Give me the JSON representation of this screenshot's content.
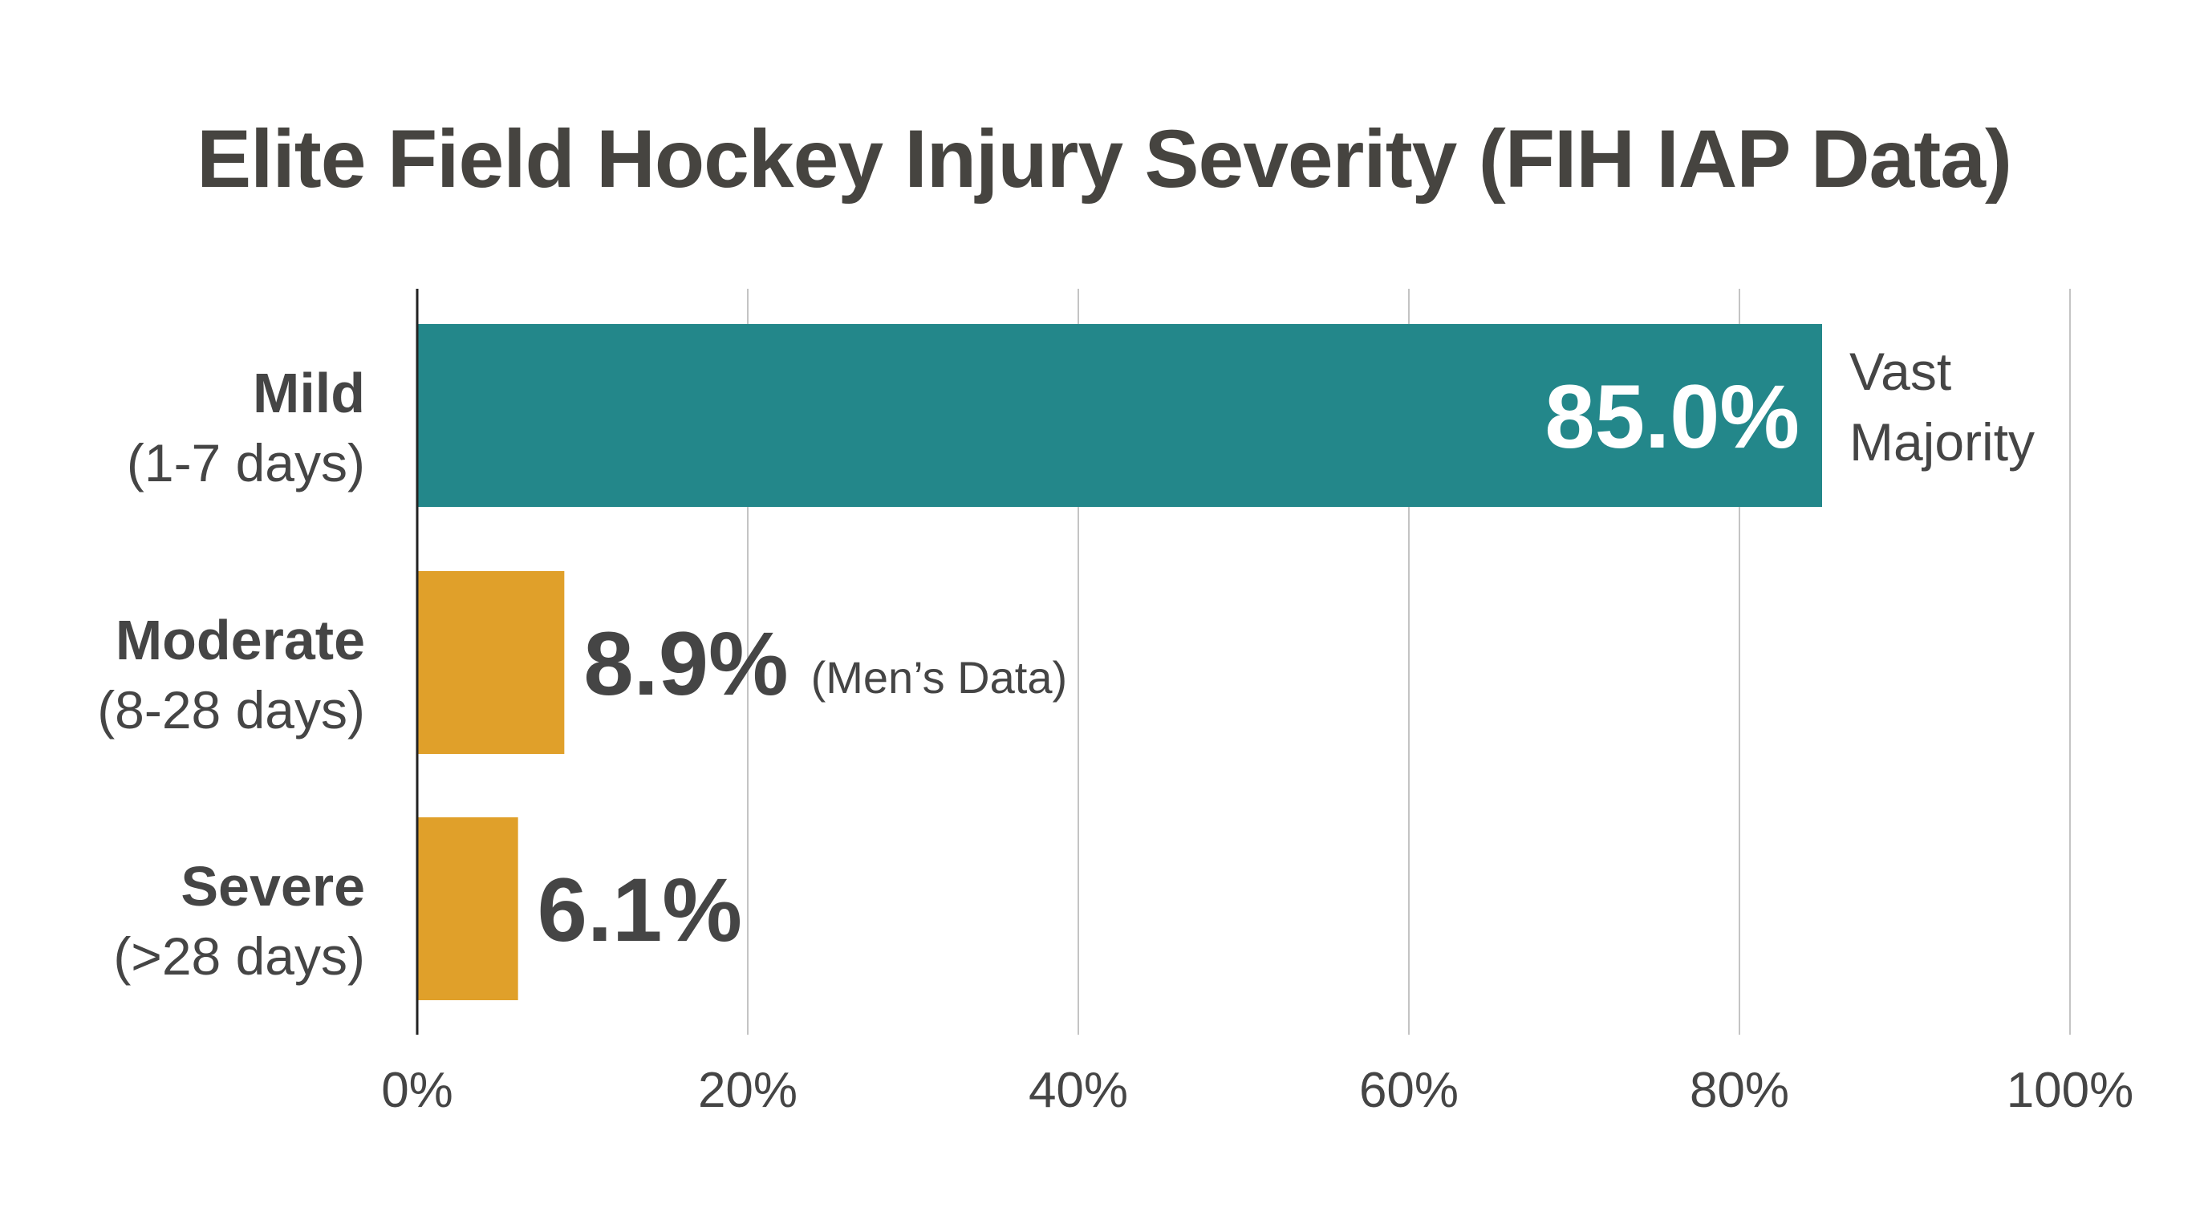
{
  "chart_data": {
    "type": "bar",
    "orientation": "horizontal",
    "title": "Elite Field Hockey Injury Severity (FIH IAP Data)",
    "categories": [
      {
        "name": "Mild",
        "sub": "(1-7 days)"
      },
      {
        "name": "Moderate",
        "sub": "(8-28 days)"
      },
      {
        "name": "Severe",
        "sub": "(>28 days)"
      }
    ],
    "values": [
      85.0,
      8.9,
      6.1
    ],
    "value_labels": [
      "85.0%",
      "8.9%",
      "6.1%"
    ],
    "annotations": [
      {
        "category": "Mild",
        "lines": [
          "Vast",
          "Majority"
        ]
      },
      {
        "category": "Moderate",
        "lines": [
          "(Men’s Data)"
        ]
      },
      {
        "category": "Severe",
        "lines": []
      }
    ],
    "bar_colors": [
      "#23878A",
      "#E0A02A",
      "#E0A02A"
    ],
    "xlim": [
      0,
      100
    ],
    "xticks": [
      0,
      20,
      40,
      60,
      80,
      100
    ],
    "xtick_labels": [
      "0%",
      "20%",
      "40%",
      "60%",
      "80%",
      "100%"
    ],
    "grid": "vertical",
    "legend": "none"
  },
  "colors": {
    "axis": "#222222",
    "grid": "#c4c4c4",
    "text": "#454545"
  }
}
